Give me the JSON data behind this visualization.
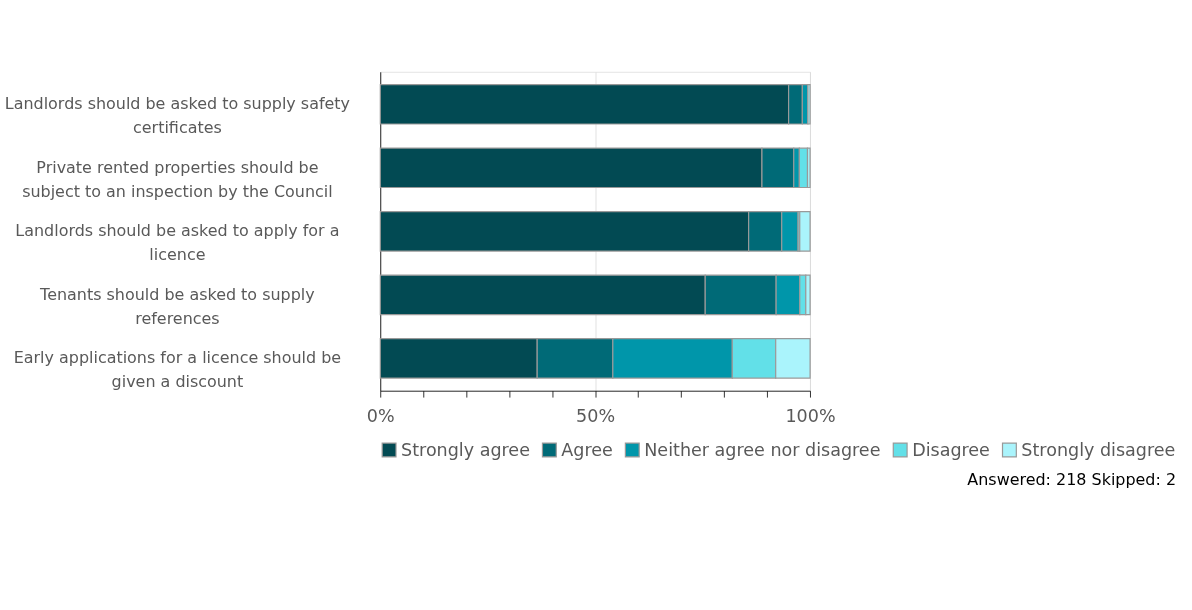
{
  "chart_data": {
    "type": "bar",
    "orientation": "horizontal",
    "stacked": true,
    "categories": [
      "Landlords should be asked to supply safety certificates",
      "Private rented properties should be subject to an inspection by the Council",
      "Landlords should be asked to apply for a licence",
      "Tenants should be asked to supply references",
      "Early applications for a licence should be given a discount"
    ],
    "series": [
      {
        "name": "Strongly agree",
        "color": "#024a53",
        "values": [
          95.0,
          88.8,
          85.7,
          75.6,
          36.5
        ]
      },
      {
        "name": "Agree",
        "color": "#006a77",
        "values": [
          3.2,
          7.4,
          7.7,
          16.5,
          17.6
        ]
      },
      {
        "name": "Neither agree nor disagree",
        "color": "#0096aa",
        "values": [
          1.3,
          1.3,
          3.8,
          5.5,
          27.8
        ]
      },
      {
        "name": "Disagree",
        "color": "#62e0e8",
        "values": [
          0.0,
          1.9,
          0.4,
          1.4,
          10.1
        ]
      },
      {
        "name": "Strongly disagree",
        "color": "#aaf4fc",
        "values": [
          0.5,
          0.6,
          2.4,
          1.0,
          8.0
        ]
      }
    ],
    "xlim": [
      0,
      100
    ],
    "xticks": [
      {
        "value": 0,
        "label": "0%"
      },
      {
        "value": 10,
        "label": null
      },
      {
        "value": 20,
        "label": null
      },
      {
        "value": 30,
        "label": null
      },
      {
        "value": 40,
        "label": null
      },
      {
        "value": 50,
        "label": "50%"
      },
      {
        "value": 60,
        "label": null
      },
      {
        "value": 70,
        "label": null
      },
      {
        "value": 80,
        "label": null
      },
      {
        "value": 90,
        "label": null
      },
      {
        "value": 100,
        "label": "100%"
      }
    ],
    "grid": "x",
    "legend": "bottom",
    "annotations": [
      "Answered: 218  Skipped: 2"
    ]
  }
}
